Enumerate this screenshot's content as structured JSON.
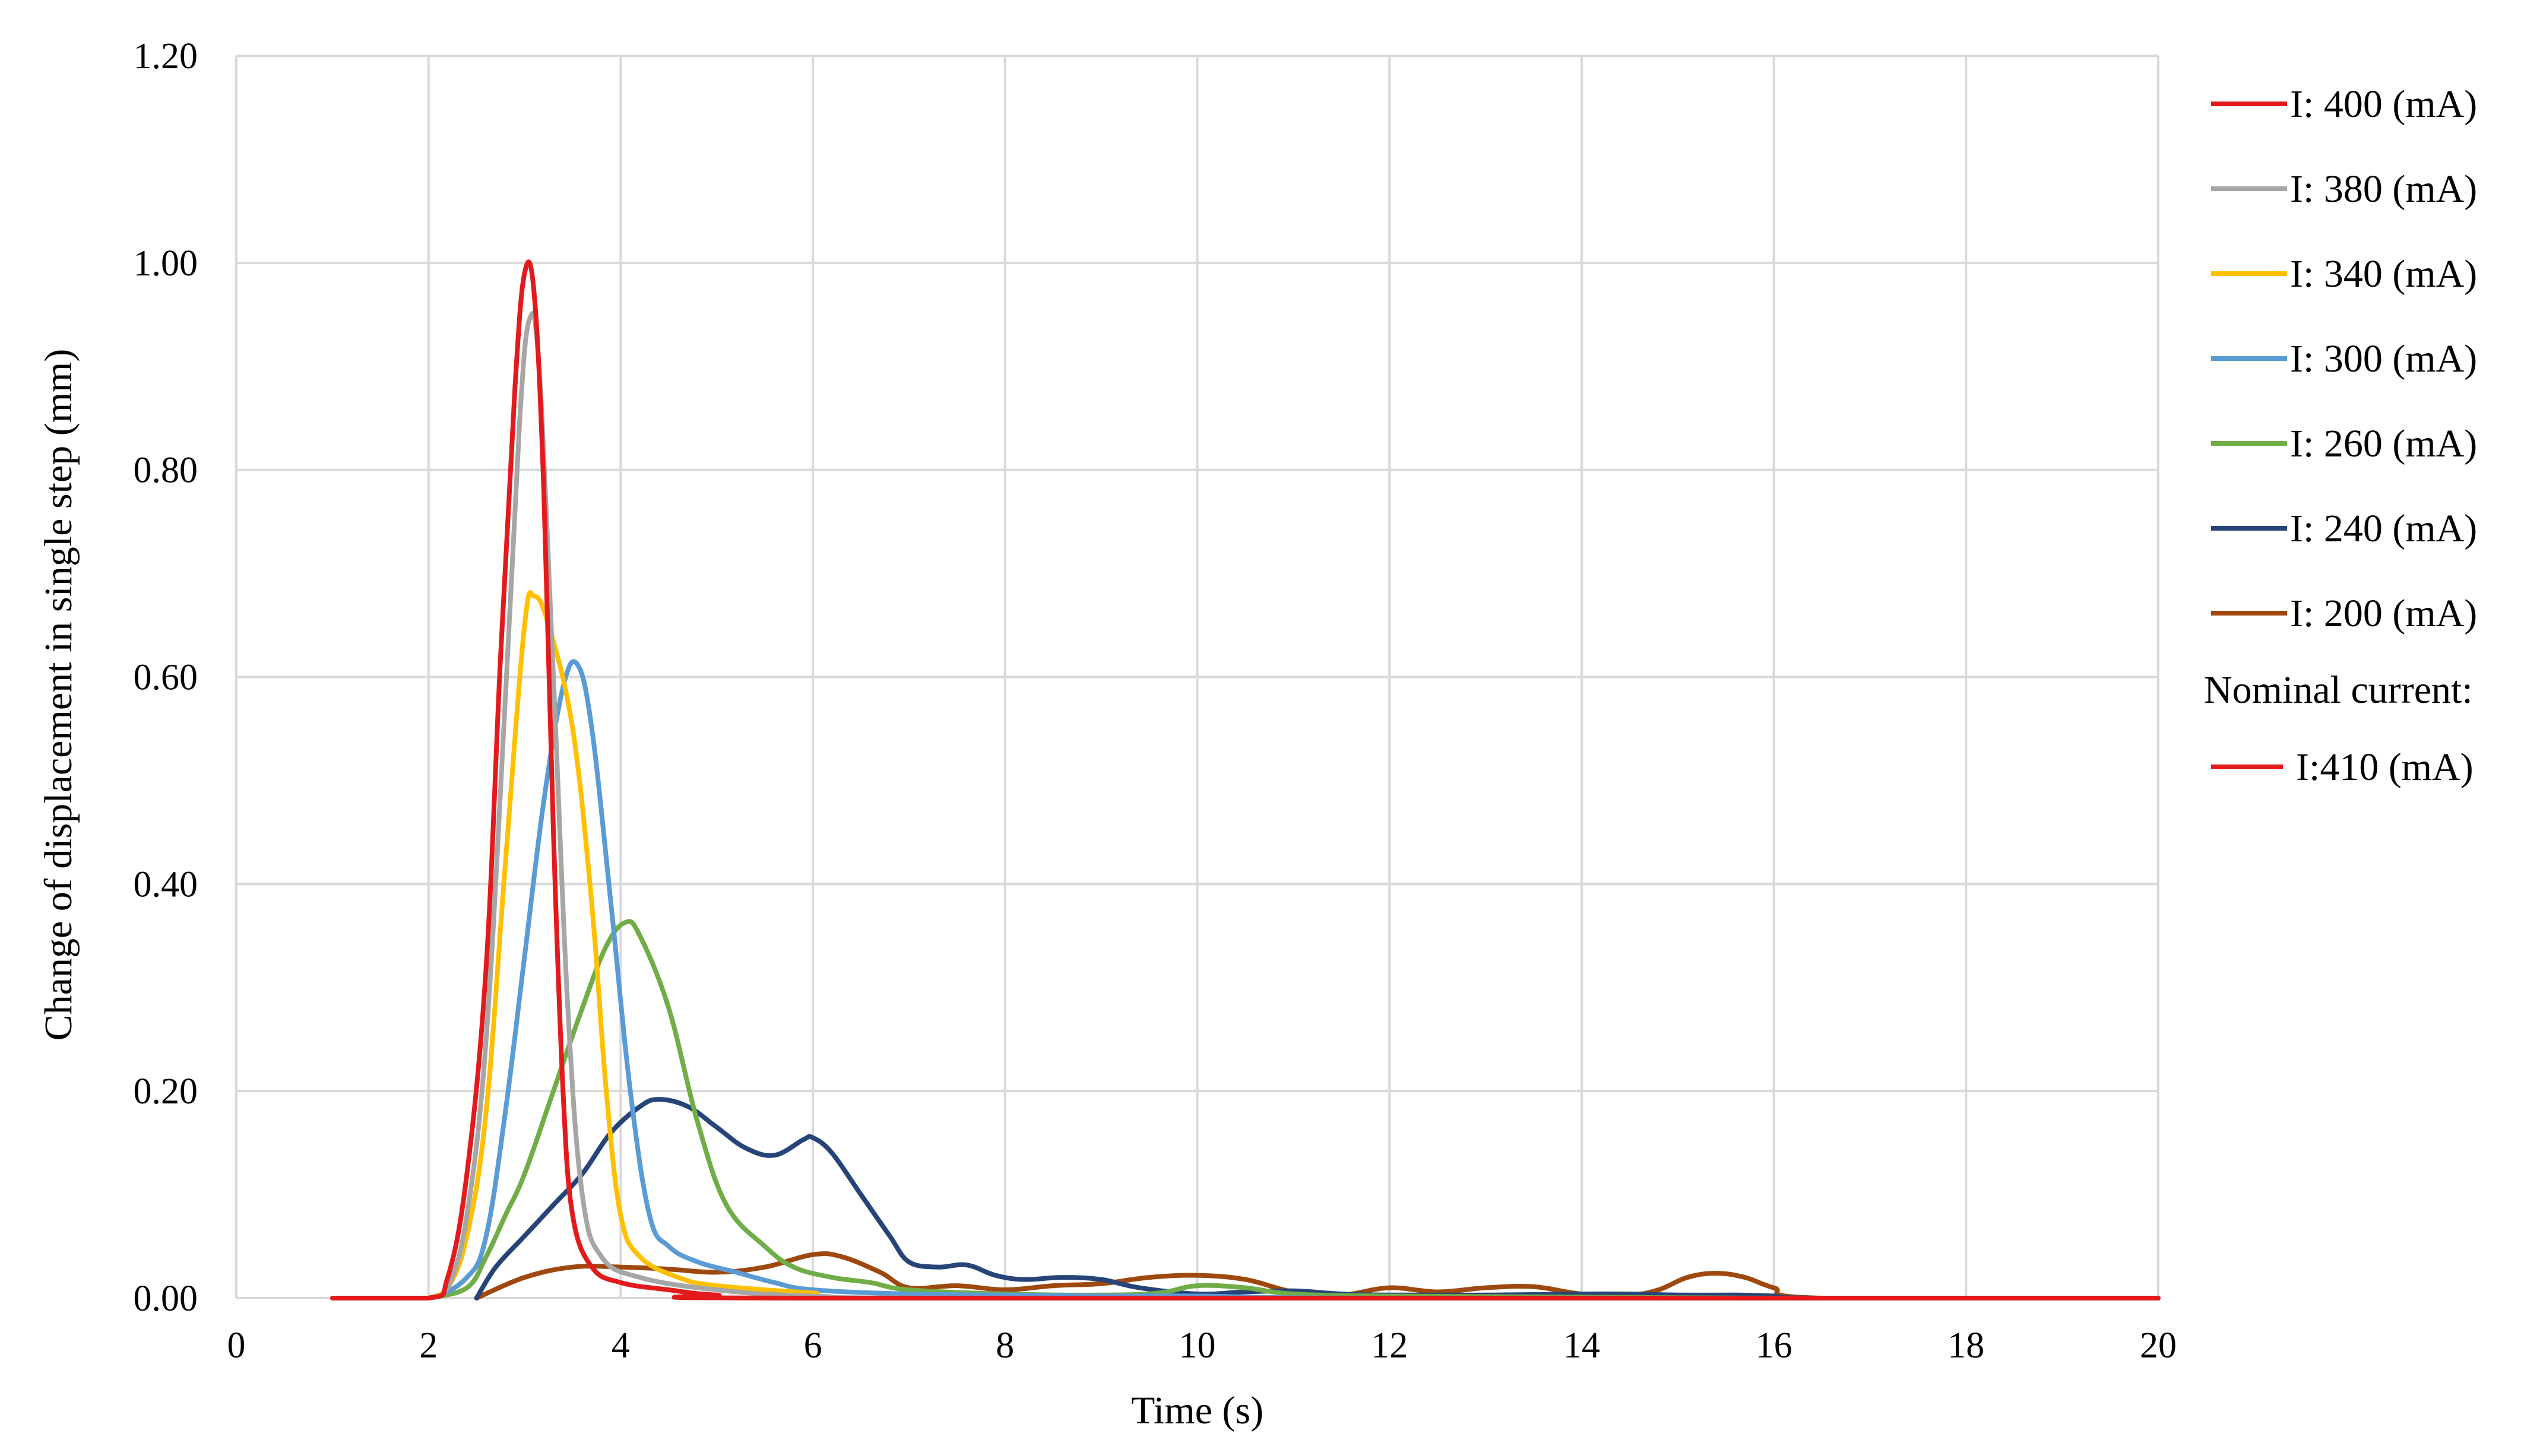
{
  "chart_data": {
    "type": "line",
    "title": "",
    "xlabel": "Time (s)",
    "ylabel": "Change of displacement in single step (mm)",
    "xlim": [
      0,
      20
    ],
    "ylim": [
      0,
      1.2
    ],
    "grid": true,
    "legend_position": "right",
    "x_ticks": [
      0,
      2,
      4,
      6,
      8,
      10,
      12,
      14,
      16,
      18,
      20
    ],
    "x_tick_labels": [
      "0",
      "2",
      "4",
      "6",
      "8",
      "10",
      "12",
      "14",
      "16",
      "18",
      "20"
    ],
    "y_ticks": [
      0,
      0.2,
      0.4,
      0.6,
      0.8,
      1.0,
      1.2
    ],
    "y_tick_labels": [
      "0.00",
      "0.20",
      "0.40",
      "0.60",
      "0.80",
      "1.00",
      "1.20"
    ],
    "legend_note": "Nominal current:",
    "series": [
      {
        "name": "I: 400 (mA)",
        "color": "#e31a1c",
        "legend_group": "main",
        "points": [
          [
            1.0,
            0.0
          ],
          [
            2.0,
            0.0
          ],
          [
            2.2,
            0.02
          ],
          [
            2.4,
            0.12
          ],
          [
            2.6,
            0.32
          ],
          [
            2.75,
            0.62
          ],
          [
            2.9,
            0.88
          ],
          [
            3.0,
            0.99
          ],
          [
            3.1,
            0.97
          ],
          [
            3.2,
            0.78
          ],
          [
            3.3,
            0.45
          ],
          [
            3.4,
            0.2
          ],
          [
            3.5,
            0.08
          ],
          [
            3.7,
            0.03
          ],
          [
            4.0,
            0.015
          ],
          [
            4.5,
            0.008
          ],
          [
            5.0,
            0.003
          ],
          [
            6.0,
            0.0
          ],
          [
            20.0,
            0.0
          ]
        ]
      },
      {
        "name": "I: 380 (mA)",
        "color": "#a6a6a6",
        "legend_group": "main",
        "points": [
          [
            1.5,
            0.0
          ],
          [
            2.0,
            0.0
          ],
          [
            2.2,
            0.01
          ],
          [
            2.4,
            0.08
          ],
          [
            2.6,
            0.25
          ],
          [
            2.8,
            0.58
          ],
          [
            2.95,
            0.85
          ],
          [
            3.05,
            0.945
          ],
          [
            3.15,
            0.9
          ],
          [
            3.3,
            0.6
          ],
          [
            3.45,
            0.28
          ],
          [
            3.6,
            0.1
          ],
          [
            3.8,
            0.04
          ],
          [
            4.2,
            0.02
          ],
          [
            5.0,
            0.008
          ],
          [
            6.0,
            0.002
          ],
          [
            8.0,
            0.0
          ],
          [
            20.0,
            0.0
          ]
        ]
      },
      {
        "name": "I: 340 (mA)",
        "color": "#ffc000",
        "legend_group": "main",
        "points": [
          [
            2.0,
            0.0
          ],
          [
            2.2,
            0.01
          ],
          [
            2.4,
            0.06
          ],
          [
            2.6,
            0.18
          ],
          [
            2.8,
            0.42
          ],
          [
            3.0,
            0.65
          ],
          [
            3.1,
            0.678
          ],
          [
            3.25,
            0.65
          ],
          [
            3.5,
            0.55
          ],
          [
            3.7,
            0.38
          ],
          [
            3.85,
            0.2
          ],
          [
            4.0,
            0.08
          ],
          [
            4.2,
            0.04
          ],
          [
            4.6,
            0.02
          ],
          [
            5.0,
            0.012
          ],
          [
            6.0,
            0.005
          ],
          [
            7.0,
            0.0
          ],
          [
            20.0,
            0.0
          ]
        ]
      },
      {
        "name": "I: 300 (mA)",
        "color": "#5b9bd5",
        "legend_group": "main",
        "points": [
          [
            1.5,
            0.0
          ],
          [
            2.0,
            0.0
          ],
          [
            2.4,
            0.02
          ],
          [
            2.6,
            0.06
          ],
          [
            2.8,
            0.18
          ],
          [
            3.0,
            0.33
          ],
          [
            3.2,
            0.48
          ],
          [
            3.4,
            0.59
          ],
          [
            3.55,
            0.612
          ],
          [
            3.7,
            0.55
          ],
          [
            3.9,
            0.38
          ],
          [
            4.1,
            0.2
          ],
          [
            4.3,
            0.08
          ],
          [
            4.5,
            0.05
          ],
          [
            4.8,
            0.035
          ],
          [
            5.2,
            0.025
          ],
          [
            5.6,
            0.015
          ],
          [
            6.0,
            0.008
          ],
          [
            7.0,
            0.004
          ],
          [
            8.0,
            0.003
          ],
          [
            9.0,
            0.002
          ],
          [
            10.0,
            0.002
          ],
          [
            12.0,
            0.0
          ],
          [
            20.0,
            0.0
          ]
        ]
      },
      {
        "name": "I: 260 (mA)",
        "color": "#70ad47",
        "legend_group": "main",
        "points": [
          [
            2.0,
            0.0
          ],
          [
            2.4,
            0.01
          ],
          [
            2.6,
            0.04
          ],
          [
            2.8,
            0.08
          ],
          [
            3.0,
            0.12
          ],
          [
            3.3,
            0.2
          ],
          [
            3.6,
            0.28
          ],
          [
            3.85,
            0.34
          ],
          [
            4.05,
            0.363
          ],
          [
            4.2,
            0.35
          ],
          [
            4.5,
            0.28
          ],
          [
            4.8,
            0.17
          ],
          [
            5.1,
            0.09
          ],
          [
            5.5,
            0.05
          ],
          [
            5.8,
            0.03
          ],
          [
            6.2,
            0.02
          ],
          [
            6.6,
            0.015
          ],
          [
            7.0,
            0.008
          ],
          [
            8.0,
            0.004
          ],
          [
            9.0,
            0.003
          ],
          [
            9.6,
            0.005
          ],
          [
            10.0,
            0.012
          ],
          [
            10.5,
            0.01
          ],
          [
            11.0,
            0.004
          ],
          [
            12.0,
            0.002
          ],
          [
            14.0,
            0.001
          ],
          [
            16.0,
            0.0
          ],
          [
            20.0,
            0.0
          ]
        ]
      },
      {
        "name": "I: 240 (mA)",
        "color": "#264478",
        "legend_group": "main",
        "points": [
          [
            2.5,
            0.0
          ],
          [
            2.7,
            0.03
          ],
          [
            3.0,
            0.06
          ],
          [
            3.3,
            0.09
          ],
          [
            3.6,
            0.12
          ],
          [
            3.9,
            0.16
          ],
          [
            4.2,
            0.185
          ],
          [
            4.4,
            0.192
          ],
          [
            4.7,
            0.185
          ],
          [
            5.0,
            0.165
          ],
          [
            5.3,
            0.145
          ],
          [
            5.6,
            0.138
          ],
          [
            5.9,
            0.153
          ],
          [
            6.0,
            0.155
          ],
          [
            6.2,
            0.14
          ],
          [
            6.5,
            0.1
          ],
          [
            6.8,
            0.06
          ],
          [
            7.0,
            0.035
          ],
          [
            7.3,
            0.03
          ],
          [
            7.6,
            0.032
          ],
          [
            7.9,
            0.022
          ],
          [
            8.2,
            0.018
          ],
          [
            8.6,
            0.02
          ],
          [
            9.0,
            0.018
          ],
          [
            9.4,
            0.01
          ],
          [
            10.0,
            0.004
          ],
          [
            10.5,
            0.006
          ],
          [
            11.0,
            0.007
          ],
          [
            11.5,
            0.004
          ],
          [
            12.0,
            0.003
          ],
          [
            13.0,
            0.003
          ],
          [
            14.0,
            0.004
          ],
          [
            14.5,
            0.004
          ],
          [
            15.0,
            0.003
          ],
          [
            15.6,
            0.003
          ],
          [
            16.0,
            0.002
          ],
          [
            16.5,
            0.0
          ],
          [
            20.0,
            0.0
          ]
        ]
      },
      {
        "name": "I: 200 (mA)",
        "color": "#9e480e",
        "legend_group": "main",
        "points": [
          [
            2.5,
            0.0
          ],
          [
            3.0,
            0.02
          ],
          [
            3.5,
            0.03
          ],
          [
            4.0,
            0.03
          ],
          [
            4.5,
            0.028
          ],
          [
            5.0,
            0.025
          ],
          [
            5.5,
            0.03
          ],
          [
            6.0,
            0.042
          ],
          [
            6.3,
            0.04
          ],
          [
            6.7,
            0.025
          ],
          [
            7.0,
            0.01
          ],
          [
            7.5,
            0.012
          ],
          [
            8.0,
            0.008
          ],
          [
            8.5,
            0.012
          ],
          [
            9.0,
            0.014
          ],
          [
            9.5,
            0.02
          ],
          [
            10.0,
            0.022
          ],
          [
            10.5,
            0.018
          ],
          [
            11.0,
            0.006
          ],
          [
            11.5,
            0.003
          ],
          [
            12.0,
            0.01
          ],
          [
            12.5,
            0.006
          ],
          [
            13.0,
            0.01
          ],
          [
            13.5,
            0.011
          ],
          [
            14.0,
            0.004
          ],
          [
            14.5,
            0.003
          ],
          [
            14.8,
            0.008
          ],
          [
            15.1,
            0.02
          ],
          [
            15.4,
            0.024
          ],
          [
            15.7,
            0.02
          ],
          [
            16.0,
            0.01
          ],
          [
            16.5,
            0.0
          ],
          [
            20.0,
            0.0
          ]
        ]
      },
      {
        "name": "I:410 (mA)",
        "color": "#e31a1c",
        "legend_group": "nominal",
        "points": []
      }
    ]
  }
}
